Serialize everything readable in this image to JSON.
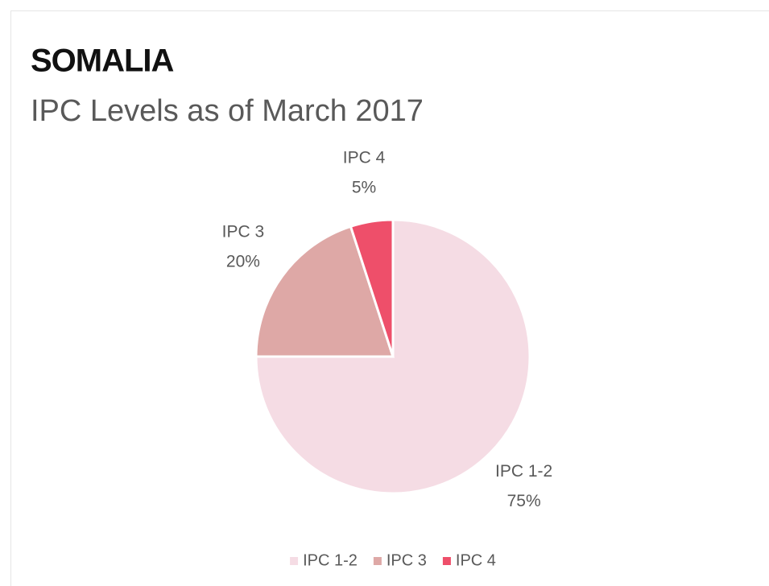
{
  "chart_data": {
    "type": "pie",
    "title": "SOMALIA",
    "subtitle": "IPC Levels as of March 2017",
    "categories": [
      "IPC 1-2",
      "IPC 3",
      "IPC 4"
    ],
    "values": [
      75,
      20,
      5
    ],
    "value_labels": [
      "75%",
      "20%",
      "5%"
    ],
    "colors": [
      "#f5dce4",
      "#dea8a6",
      "#ee4f6a"
    ],
    "legend": "bottom"
  }
}
